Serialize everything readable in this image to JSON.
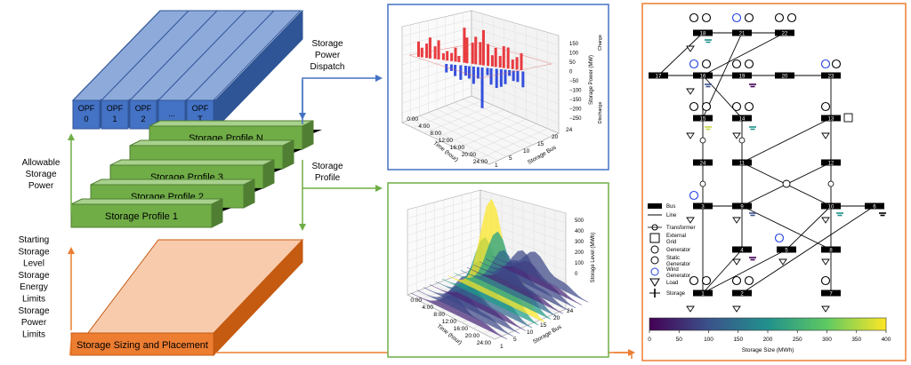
{
  "blocks": {
    "opf_labels": [
      "OPF\n0",
      "OPF\n1",
      "OPF\n2",
      "...",
      "OPF\nT"
    ],
    "profiles": [
      "Storage Profile 1",
      "Storage Profile 2",
      "Storage Profile 3",
      "...",
      "Storage Profile N"
    ],
    "base": "Storage Sizing and Placement"
  },
  "arrows": {
    "dispatch": [
      "Storage",
      "Power",
      "Dispatch"
    ],
    "profile": [
      "Storage",
      "Profile"
    ],
    "allowable": [
      "Allowable",
      "Storage",
      "Power"
    ],
    "limits": [
      "Starting",
      "Storage",
      "Level",
      "Storage",
      "Energy",
      "Limits",
      "Storage",
      "Power",
      "Limits"
    ]
  },
  "colors": {
    "opf_top": "#8eaadb",
    "opf_front": "#4472c4",
    "opf_side": "#2f5597",
    "profile_top": "#a9d18e",
    "profile_front": "#70ad47",
    "profile_side": "#507e32",
    "base_top": "#f8cbad",
    "base_front": "#ed7d31",
    "base_side": "#c55a11",
    "arrow_blue": "#4472c4",
    "arrow_green": "#70ad47",
    "arrow_orange": "#ed7d31"
  },
  "plot_top": {
    "z_label": "Storage Power (MW)",
    "z_ticks": [
      "150",
      "100",
      "50",
      "0",
      "−50",
      "−100",
      "−150",
      "−200",
      "−250"
    ],
    "charge_label": "Charge",
    "discharge_label": "Discharge",
    "time_label": "Time (hour)",
    "time_ticks": [
      "0:00",
      "4:00",
      "8:00",
      "12:00",
      "16:00",
      "20:00",
      "24:00"
    ],
    "bus_label": "Storage Bus",
    "bus_ticks": [
      "1",
      "5",
      "10",
      "15",
      "20",
      "24"
    ]
  },
  "plot_bottom": {
    "z_label": "Storage Level (MWh)",
    "z_ticks": [
      "500",
      "400",
      "300",
      "200",
      "100",
      "0"
    ],
    "time_label": "Time (hour)",
    "time_ticks": [
      "0:00",
      "4:00",
      "8:00",
      "12:00",
      "16:00",
      "20:00",
      "24:00"
    ],
    "bus_label": "Storage Bus",
    "bus_ticks": [
      "1",
      "5",
      "10",
      "15",
      "20",
      "24"
    ]
  },
  "network": {
    "bus_numbers": [
      "18",
      "21",
      "22",
      "17",
      "16",
      "19",
      "20",
      "23",
      "15",
      "14",
      "13",
      "24",
      "11",
      "12",
      "3",
      "9",
      "10",
      "6",
      "4",
      "5",
      "8",
      "1",
      "2",
      "7"
    ],
    "legend": [
      "Bus",
      "Line",
      "Transformer",
      "External\nGrid",
      "Generator",
      "Static\nGenerator",
      "Wind\nGenerator",
      "Load",
      "Storage"
    ],
    "colorbar_ticks": [
      "0",
      "50",
      "100",
      "150",
      "200",
      "250",
      "300",
      "350",
      "400"
    ],
    "colorbar_label": "Storage Size (MWh)"
  }
}
